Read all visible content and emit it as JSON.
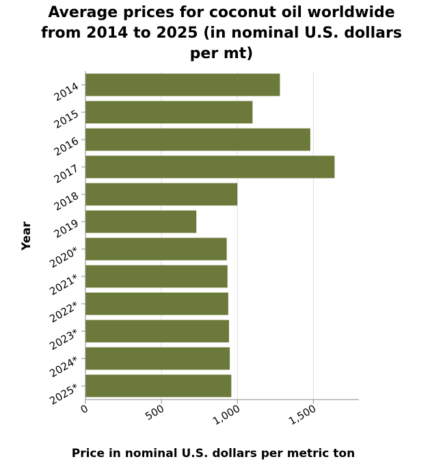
{
  "chart_data": {
    "type": "bar",
    "orientation": "horizontal",
    "title": "Average prices for coconut oil worldwide from 2014 to 2025 (in nominal U.S. dollars per mt)",
    "title_lines": [
      "Average prices for coconut oil worldwide",
      "from 2014 to 2025 (in nominal U.S. dollars",
      "per mt)"
    ],
    "xlabel": "Price in nominal U.S. dollars per metric ton",
    "ylabel": "Year",
    "categories": [
      "2014",
      "2015",
      "2016",
      "2017",
      "2018",
      "2019",
      "2020*",
      "2021*",
      "2022*",
      "2023*",
      "2024*",
      "2025*"
    ],
    "values": [
      1280,
      1100,
      1480,
      1640,
      1000,
      730,
      930,
      935,
      940,
      945,
      950,
      960
    ],
    "x_ticks": [
      0,
      500,
      1000,
      1500
    ],
    "x_tick_labels": [
      "0",
      "500",
      "1,000",
      "1,500"
    ],
    "xlim": [
      0,
      1800
    ],
    "grid": true,
    "bar_color": "#6b7a3a",
    "grid_color": "#dddddd",
    "axis_color": "#888888"
  }
}
